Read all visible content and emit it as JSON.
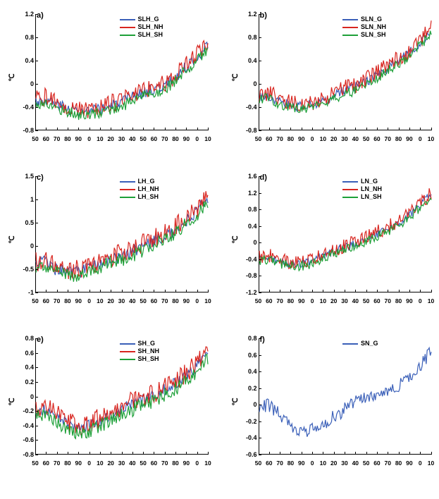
{
  "colors": {
    "blue": "#3a5fb8",
    "red": "#d8251f",
    "green": "#1da038",
    "axis": "#000000",
    "bg": "#ffffff"
  },
  "xdomain": [
    1850,
    2015
  ],
  "xticks": [
    50,
    60,
    70,
    80,
    90,
    0,
    10,
    20,
    30,
    40,
    50,
    60,
    70,
    80,
    90,
    0,
    10
  ],
  "panels": [
    {
      "id": "a",
      "label": "a)",
      "ylabel": "℃",
      "ylim": [
        -0.8,
        1.2
      ],
      "yticks": [
        -0.8,
        -0.4,
        0.0,
        0.4,
        0.8,
        1.2
      ],
      "legend": [
        {
          "label": "SLH_G",
          "color": "blue"
        },
        {
          "label": "SLH_NH",
          "color": "red"
        },
        {
          "label": "SLH_SH",
          "color": "green"
        }
      ],
      "series": [
        "blue",
        "red",
        "green"
      ],
      "base_curve": [
        -0.3,
        -0.28,
        -0.35,
        -0.4,
        -0.45,
        -0.5,
        -0.48,
        -0.45,
        -0.4,
        -0.35,
        -0.3,
        -0.2,
        -0.15,
        -0.1,
        -0.05,
        0.05,
        0.2,
        0.35,
        0.5,
        0.65
      ],
      "noise_amp": [
        0.1,
        0.16,
        0.1
      ],
      "offsets": [
        0.0,
        0.04,
        -0.06
      ]
    },
    {
      "id": "b",
      "label": "b)",
      "ylabel": "℃",
      "ylim": [
        -0.8,
        1.2
      ],
      "yticks": [
        -0.8,
        -0.4,
        0.0,
        0.4,
        0.8,
        1.2
      ],
      "legend": [
        {
          "label": "SLN_G",
          "color": "blue"
        },
        {
          "label": "SLN_NH",
          "color": "red"
        },
        {
          "label": "SLN_SH",
          "color": "green"
        }
      ],
      "series": [
        "blue",
        "red",
        "green"
      ],
      "base_curve": [
        -0.25,
        -0.2,
        -0.3,
        -0.35,
        -0.4,
        -0.38,
        -0.35,
        -0.3,
        -0.25,
        -0.15,
        -0.1,
        -0.05,
        0.05,
        0.15,
        0.25,
        0.35,
        0.45,
        0.6,
        0.75,
        0.9
      ],
      "noise_amp": [
        0.09,
        0.15,
        0.09
      ],
      "offsets": [
        0.0,
        0.04,
        -0.05
      ]
    },
    {
      "id": "c",
      "label": "c)",
      "ylabel": "℃",
      "ylim": [
        -1.0,
        1.5
      ],
      "yticks": [
        -1.0,
        -0.5,
        0.0,
        0.5,
        1.0,
        1.5
      ],
      "legend": [
        {
          "label": "LH_G",
          "color": "blue"
        },
        {
          "label": "LH_NH",
          "color": "red"
        },
        {
          "label": "LH_SH",
          "color": "green"
        }
      ],
      "series": [
        "blue",
        "red",
        "green"
      ],
      "base_curve": [
        -0.4,
        -0.35,
        -0.5,
        -0.55,
        -0.6,
        -0.55,
        -0.5,
        -0.4,
        -0.3,
        -0.25,
        -0.2,
        -0.1,
        0.0,
        0.1,
        0.2,
        0.3,
        0.45,
        0.6,
        0.8,
        1.0
      ],
      "noise_amp": [
        0.13,
        0.22,
        0.15
      ],
      "offsets": [
        0.0,
        0.05,
        -0.08
      ]
    },
    {
      "id": "d",
      "label": "d)",
      "ylabel": "℃",
      "ylim": [
        -1.2,
        1.6
      ],
      "yticks": [
        -1.2,
        -0.8,
        -0.4,
        0.0,
        0.4,
        0.8,
        1.2,
        1.6
      ],
      "legend": [
        {
          "label": "LN_G",
          "color": "blue"
        },
        {
          "label": "LN_NH",
          "color": "red"
        },
        {
          "label": "LN_SH",
          "color": "green"
        }
      ],
      "series": [
        "blue",
        "red",
        "green"
      ],
      "base_curve": [
        -0.4,
        -0.35,
        -0.45,
        -0.5,
        -0.55,
        -0.5,
        -0.45,
        -0.35,
        -0.25,
        -0.15,
        -0.1,
        0.0,
        0.1,
        0.2,
        0.3,
        0.4,
        0.55,
        0.75,
        0.95,
        1.15
      ],
      "noise_amp": [
        0.1,
        0.18,
        0.12
      ],
      "offsets": [
        0.0,
        0.05,
        -0.06
      ]
    },
    {
      "id": "e",
      "label": "e)",
      "ylabel": "℃",
      "ylim": [
        -0.8,
        0.8
      ],
      "yticks": [
        -0.8,
        -0.6,
        -0.4,
        -0.2,
        0.0,
        0.2,
        0.4,
        0.6,
        0.8
      ],
      "legend": [
        {
          "label": "SH_G",
          "color": "blue"
        },
        {
          "label": "SH_NH",
          "color": "red"
        },
        {
          "label": "SH_SH",
          "color": "green"
        }
      ],
      "series": [
        "blue",
        "red",
        "green"
      ],
      "base_curve": [
        -0.2,
        -0.18,
        -0.28,
        -0.35,
        -0.42,
        -0.45,
        -0.4,
        -0.35,
        -0.28,
        -0.22,
        -0.15,
        -0.1,
        -0.05,
        0.0,
        0.08,
        0.15,
        0.22,
        0.32,
        0.45,
        0.6
      ],
      "noise_amp": [
        0.08,
        0.14,
        0.1
      ],
      "offsets": [
        0.0,
        0.04,
        -0.07
      ]
    },
    {
      "id": "f",
      "label": "f)",
      "ylabel": "℃",
      "ylim": [
        -0.6,
        0.8
      ],
      "yticks": [
        -0.6,
        -0.4,
        -0.2,
        0.0,
        0.2,
        0.4,
        0.6,
        0.8
      ],
      "legend": [
        {
          "label": "SN_G",
          "color": "blue"
        }
      ],
      "series": [
        "blue"
      ],
      "base_curve": [
        -0.05,
        0.0,
        -0.1,
        -0.2,
        -0.3,
        -0.35,
        -0.3,
        -0.25,
        -0.15,
        -0.1,
        0.0,
        0.05,
        0.1,
        0.08,
        0.15,
        0.2,
        0.28,
        0.38,
        0.5,
        0.65
      ],
      "noise_amp": [
        0.08
      ],
      "offsets": [
        0.0
      ]
    }
  ],
  "plot": {
    "line_width": 1.2,
    "font_size_label": 11,
    "font_size_tick": 9,
    "font_size_legend": 9
  }
}
